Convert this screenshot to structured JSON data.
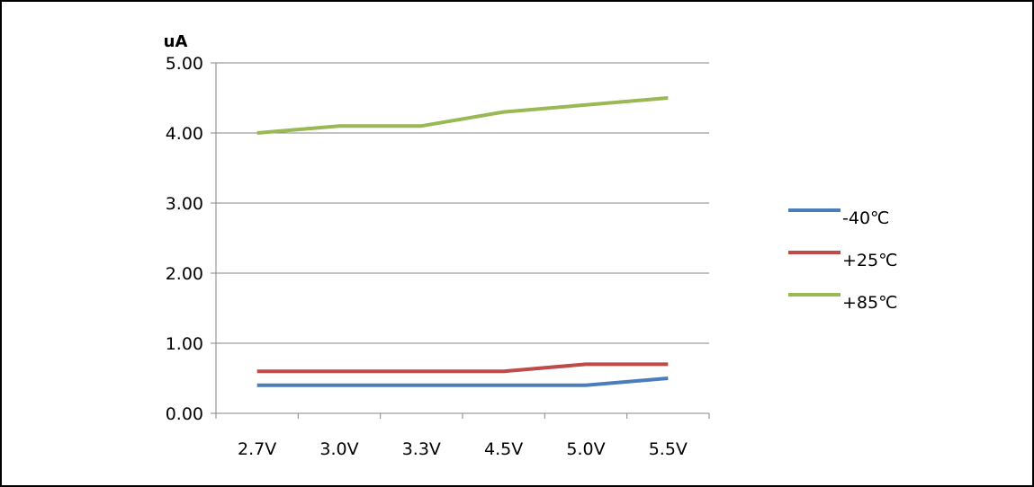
{
  "chart_data": {
    "type": "line",
    "title": "",
    "xlabel": "",
    "ylabel": "uA",
    "categories": [
      "2.7V",
      "3.0V",
      "3.3V",
      "4.5V",
      "5.0V",
      "5.5V"
    ],
    "ylim": [
      0,
      5
    ],
    "yticks": [
      "0.00",
      "1.00",
      "2.00",
      "3.00",
      "4.00",
      "5.00"
    ],
    "grid": true,
    "legend_position": "right",
    "series": [
      {
        "name": "-40℃",
        "color": "#4a7ebb",
        "values": [
          0.4,
          0.4,
          0.4,
          0.4,
          0.4,
          0.5
        ]
      },
      {
        "name": "+25℃",
        "color": "#be4b48",
        "values": [
          0.6,
          0.6,
          0.6,
          0.6,
          0.7,
          0.7
        ]
      },
      {
        "name": "+85℃",
        "color": "#98b954",
        "values": [
          4.0,
          4.1,
          4.1,
          4.3,
          4.4,
          4.5
        ]
      }
    ]
  }
}
